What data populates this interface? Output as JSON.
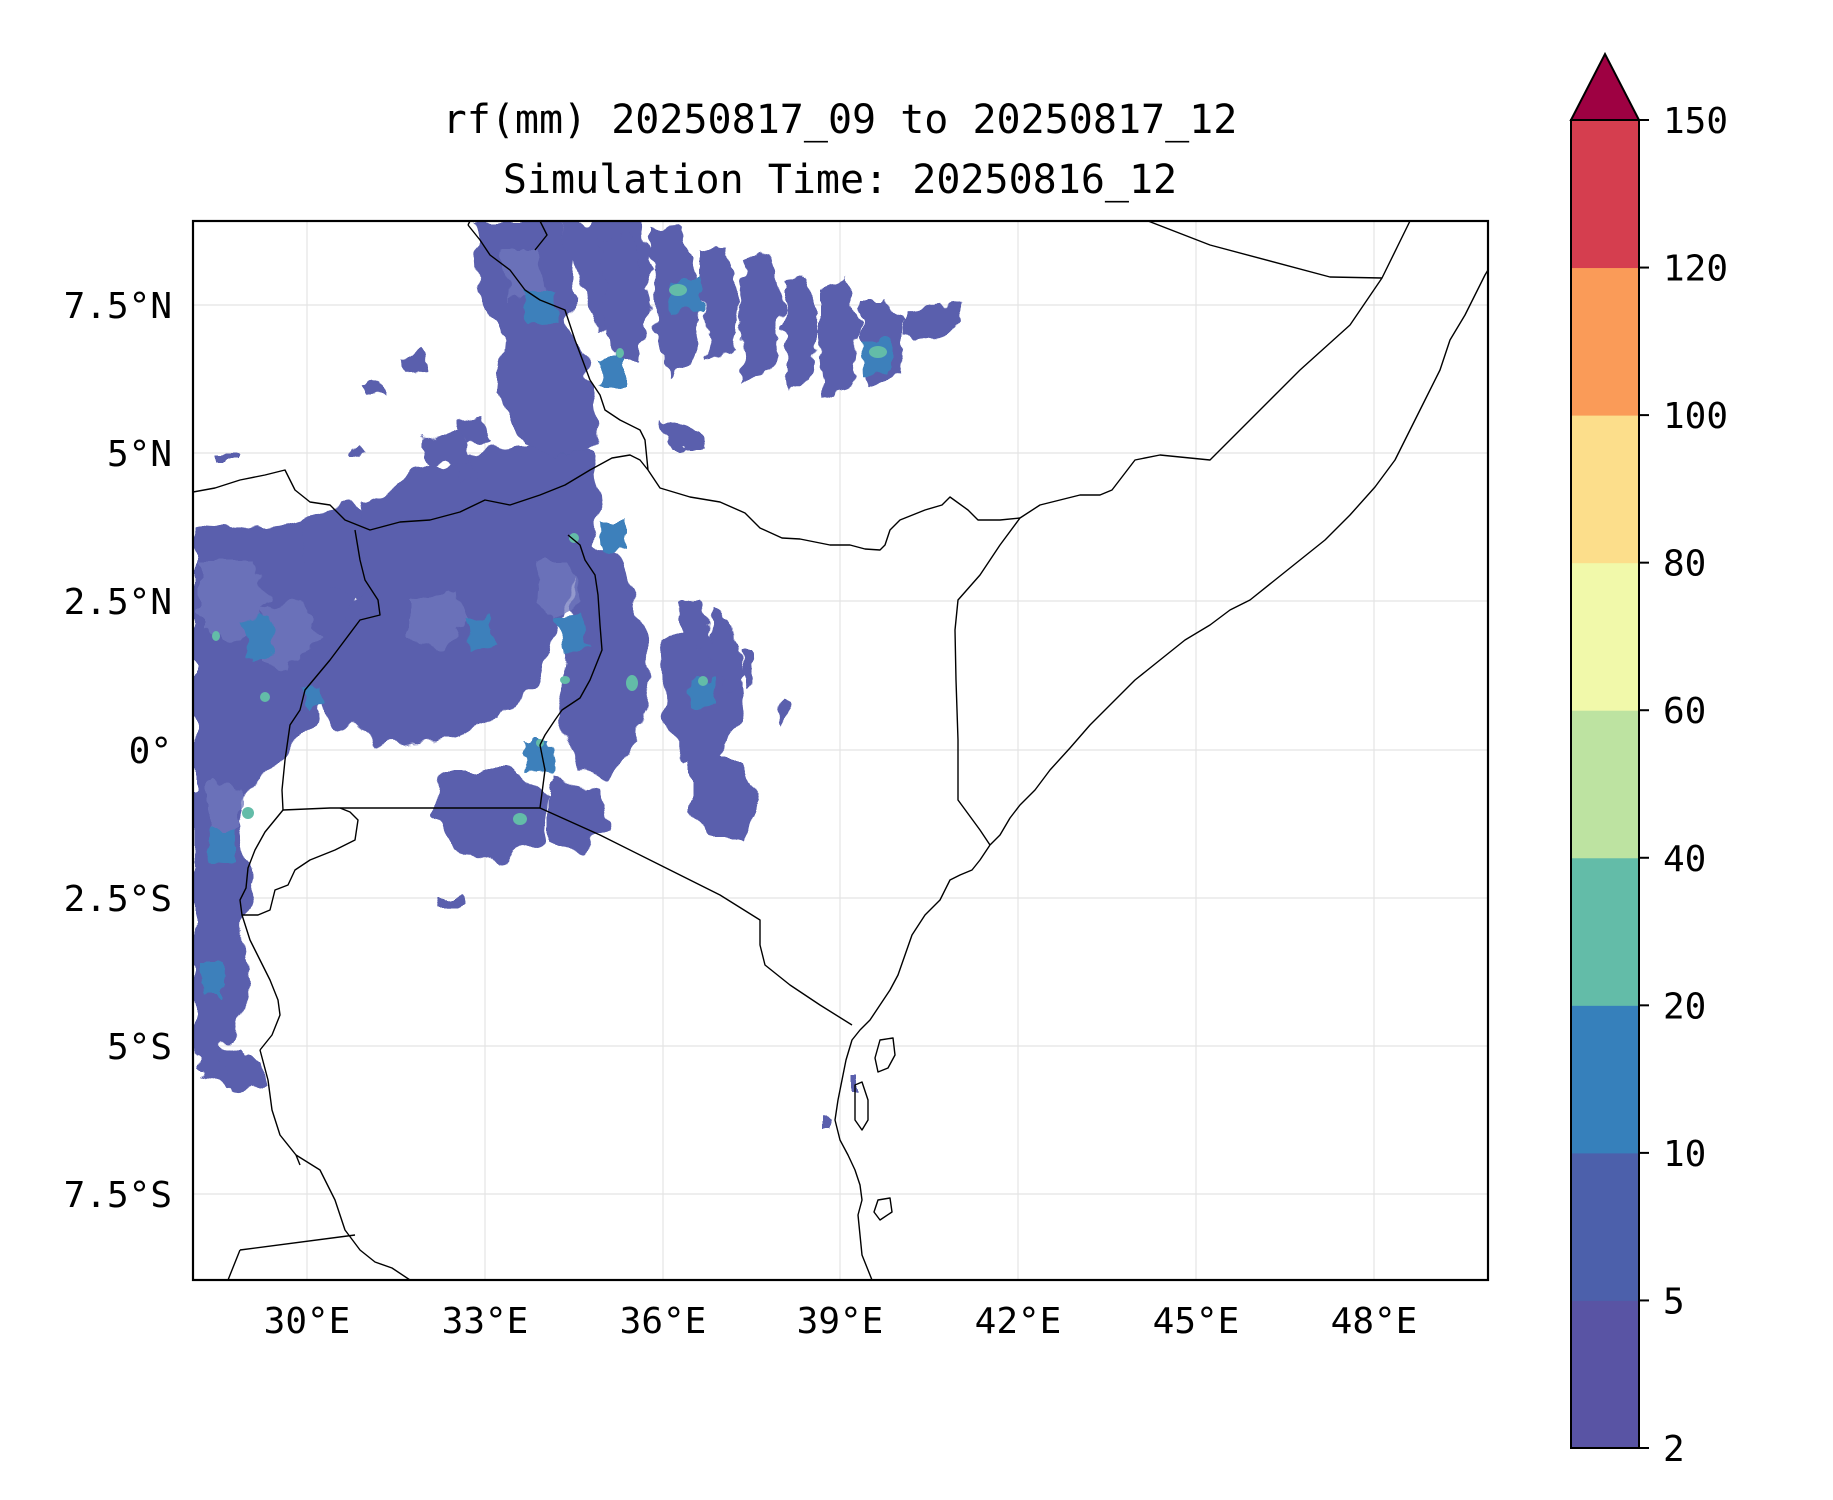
{
  "title": {
    "line1": "rf(mm) 20250817_09 to 20250817_12",
    "line2": "Simulation Time: 20250816_12"
  },
  "map": {
    "x_ticks": [
      "30°E",
      "33°E",
      "36°E",
      "39°E",
      "42°E",
      "45°E",
      "48°E"
    ],
    "y_ticks": [
      "7.5°N",
      "5°N",
      "2.5°N",
      "0°",
      "2.5°S",
      "5°S",
      "7.5°S"
    ]
  },
  "colorbar": {
    "extend": "max",
    "levels": [
      2,
      5,
      10,
      20,
      40,
      60,
      80,
      100,
      120,
      150
    ],
    "tick_labels": [
      "2",
      "5",
      "10",
      "20",
      "40",
      "60",
      "80",
      "100",
      "120",
      "150"
    ],
    "colors": [
      "#5954a4",
      "#4c60ab",
      "#3680bb",
      "#63bca8",
      "#bde3a1",
      "#f1f9aa",
      "#fcde8b",
      "#fa9b58",
      "#d53e4f",
      "#9e0142"
    ]
  },
  "colors": {
    "rain_main": "#5a5fad",
    "rain_light": "#7078bd",
    "rain_core": "#3e80bb",
    "rain_high": "#63bca8",
    "grid": "#e4e4e4",
    "border": "#000000"
  },
  "chart_data": {
    "type": "filled_contour_map",
    "variable": "rf(mm)",
    "period": "20250817_09 to 20250817_12",
    "simulation_time": "20250816_12",
    "lon_range": [
      28.1,
      50.0
    ],
    "lat_range": [
      -8.9,
      8.9
    ],
    "colorbar_levels": [
      2,
      5,
      10,
      20,
      40,
      60,
      80,
      100,
      120,
      150
    ]
  }
}
